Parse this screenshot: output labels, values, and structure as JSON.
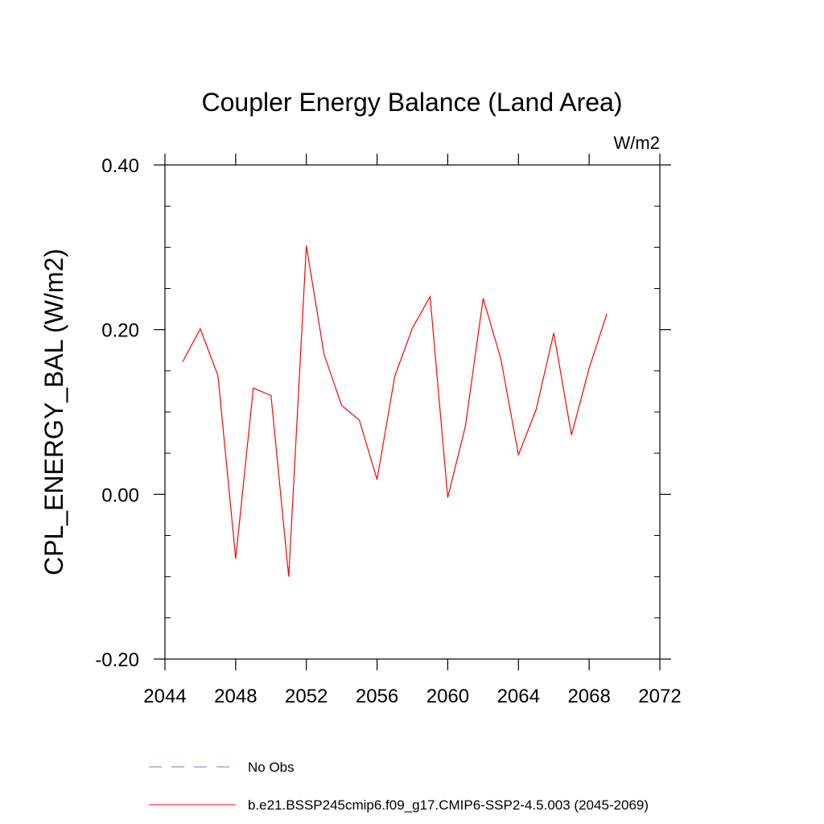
{
  "chart_data": {
    "type": "line",
    "title": "Coupler Energy Balance (Land Area)",
    "units": "W/m2",
    "xlabel": "",
    "ylabel": "CPL_ENERGY_BAL  (W/m2)",
    "xlim": [
      2044,
      2072
    ],
    "ylim": [
      -0.2,
      0.4
    ],
    "xticks": [
      2044,
      2048,
      2052,
      2056,
      2060,
      2064,
      2068,
      2072
    ],
    "xtick_labels": [
      "2044",
      "2048",
      "2052",
      "2056",
      "2060",
      "2064",
      "2068",
      "2072"
    ],
    "yticks": [
      -0.2,
      0.0,
      0.2,
      0.4
    ],
    "ytick_labels": [
      "-0.20",
      "0.00",
      "0.20",
      "0.40"
    ],
    "grid": false,
    "legend_position": "bottom",
    "series": [
      {
        "name": "b.e21.BSSP245cmip6.f09_g17.CMIP6-SSP2-4.5.003 (2045-2069)",
        "color": "#ff0000",
        "style": "solid",
        "x": [
          2045,
          2046,
          2047,
          2048,
          2049,
          2050,
          2051,
          2052,
          2053,
          2054,
          2055,
          2056,
          2057,
          2058,
          2059,
          2060,
          2061,
          2062,
          2063,
          2064,
          2065,
          2066,
          2067,
          2068,
          2069
        ],
        "values": [
          0.161,
          0.201,
          0.144,
          -0.078,
          0.129,
          0.12,
          -0.1,
          0.302,
          0.17,
          0.108,
          0.09,
          0.018,
          0.143,
          0.202,
          0.24,
          -0.004,
          0.083,
          0.238,
          0.165,
          0.048,
          0.103,
          0.196,
          0.072,
          0.153,
          0.219
        ]
      },
      {
        "name": "No Obs",
        "color": "#7b78c8",
        "style": "dashed",
        "x": [],
        "values": []
      }
    ]
  }
}
